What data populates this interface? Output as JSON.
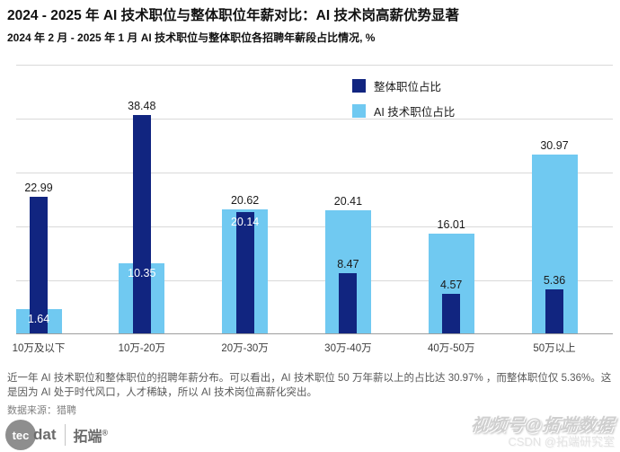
{
  "chart_data": {
    "type": "bar",
    "title": "2024 - 2025 年 AI 技术职位与整体职位年薪对比：AI 技术岗高薪优势显著",
    "subtitle": "2024 年 2 月 - 2025 年 1 月 AI 技术职位与整体职位各招聘年薪段占比情况, %",
    "categories": [
      "10万及以下",
      "10万-20万",
      "20万-30万",
      "30万-40万",
      "40万-50万",
      "50万以上"
    ],
    "series": [
      {
        "name": "整体职位占比",
        "color": "#112580",
        "values": [
          22.99,
          38.48,
          20.14,
          8.47,
          4.57,
          5.36
        ]
      },
      {
        "name": "AI 技术职位占比",
        "color": "#70c9f1",
        "values": [
          1.64,
          10.35,
          20.62,
          20.41,
          16.01,
          30.97
        ]
      }
    ],
    "ylabel": "%",
    "ylim": [
      0,
      48
    ],
    "grid": true,
    "legend_position": "top-right",
    "value_labels": true
  },
  "footnote": "近一年 AI 技术职位和整体职位的招聘年薪分布。可以看出，AI 技术职位 50 万年薪以上的占比达 30.97% ，而整体职位仅 5.36%。这是因为 AI 处于时代风口，人才稀缺，所以 AI 技术岗位高薪化突出。",
  "source": "数据来源：猎聘",
  "logo": {
    "circle_text": "tec",
    "suffix": "dat",
    "brand": "拓端",
    "reg": "®"
  },
  "watermark": {
    "line1": "视频号@拓端数据",
    "line2": "CSDN @拓端研究室"
  }
}
